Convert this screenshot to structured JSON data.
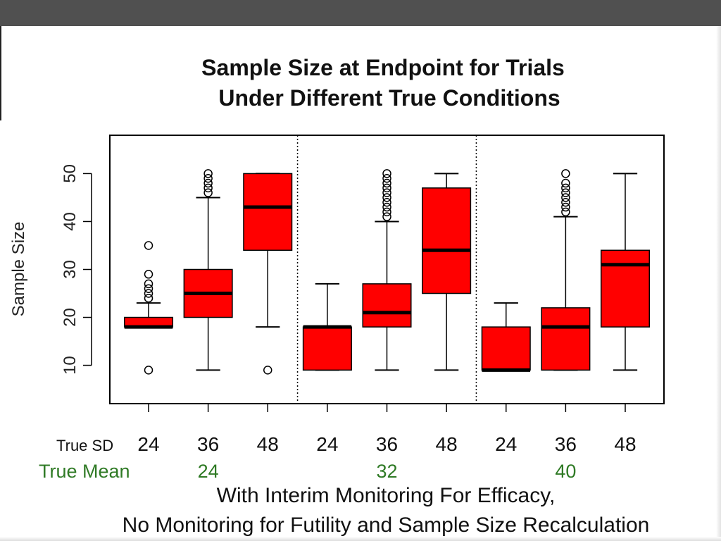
{
  "chart_data": {
    "type": "box",
    "title_lines": [
      "Sample Size at Endpoint for Trials",
      "Under Different True Conditions"
    ],
    "ylabel": "Sample Size",
    "xlabel_lines": [
      "With Interim Monitoring For Efficacy,",
      "No Monitoring for Futility and Sample Size Recalculation"
    ],
    "ylim": [
      2,
      58
    ],
    "yticks": [
      10,
      20,
      30,
      40,
      50
    ],
    "sd_label": "True SD",
    "mean_label": "True Mean",
    "colors": {
      "box_fill": "#ff0000",
      "outline": "#000000",
      "mean_label": "#2f7a25"
    },
    "groups": [
      {
        "mean": "24",
        "boxes": [
          {
            "sd": "24",
            "whisker_low": 18,
            "q1": 18,
            "median": 18,
            "q3": 20,
            "whisker_high": 23,
            "outliers": [
              24,
              25,
              26,
              27,
              29,
              35,
              9
            ]
          },
          {
            "sd": "36",
            "whisker_low": 9,
            "q1": 20,
            "median": 25,
            "q3": 30,
            "whisker_high": 45,
            "outliers": [
              46,
              47,
              48,
              49,
              50
            ]
          },
          {
            "sd": "48",
            "whisker_low": 18,
            "q1": 34,
            "median": 43,
            "q3": 50,
            "whisker_high": 50,
            "outliers": [
              9
            ]
          }
        ]
      },
      {
        "mean": "32",
        "boxes": [
          {
            "sd": "24",
            "whisker_low": 9,
            "q1": 9,
            "median": 18,
            "q3": 18,
            "whisker_high": 27,
            "outliers": []
          },
          {
            "sd": "36",
            "whisker_low": 9,
            "q1": 18,
            "median": 21,
            "q3": 27,
            "whisker_high": 40,
            "outliers": [
              41,
              42,
              43,
              44,
              45,
              46,
              47,
              48,
              49,
              50
            ]
          },
          {
            "sd": "48",
            "whisker_low": 9,
            "q1": 25,
            "median": 34,
            "q3": 47,
            "whisker_high": 50,
            "outliers": []
          }
        ]
      },
      {
        "mean": "40",
        "boxes": [
          {
            "sd": "24",
            "whisker_low": 9,
            "q1": 9,
            "median": 9,
            "q3": 18,
            "whisker_high": 23,
            "outliers": []
          },
          {
            "sd": "36",
            "whisker_low": 9,
            "q1": 9,
            "median": 18,
            "q3": 22,
            "whisker_high": 41,
            "outliers": [
              42,
              43,
              44,
              45,
              46,
              47,
              48,
              50
            ]
          },
          {
            "sd": "48",
            "whisker_low": 9,
            "q1": 18,
            "median": 31,
            "q3": 34,
            "whisker_high": 50,
            "outliers": []
          }
        ]
      }
    ]
  }
}
